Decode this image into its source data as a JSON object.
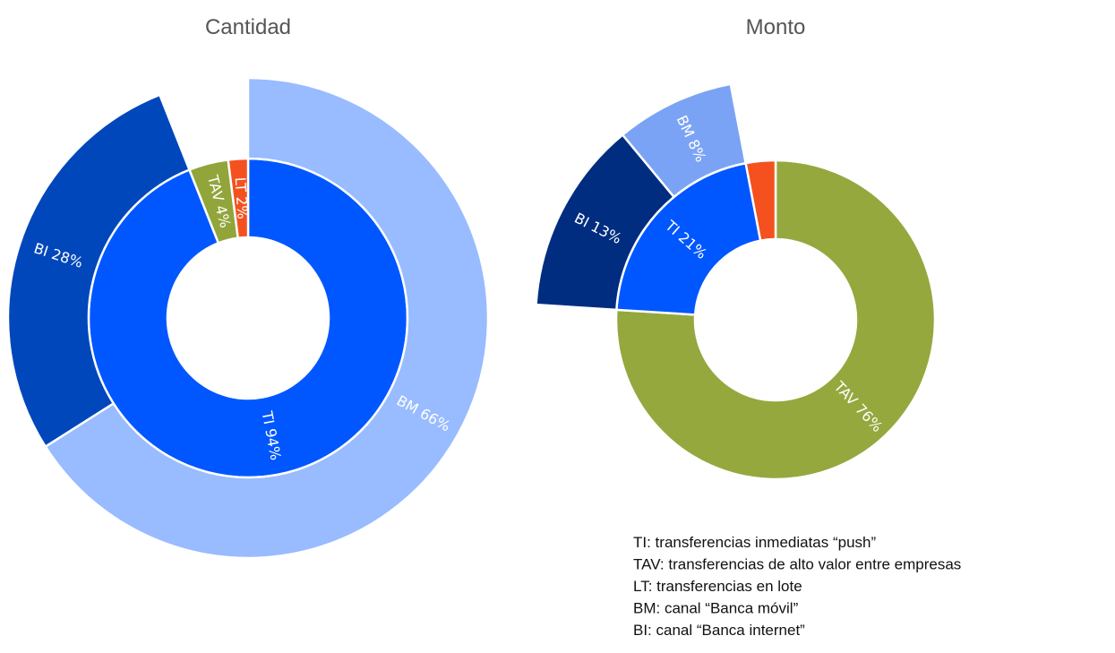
{
  "chart_data": [
    {
      "type": "sunburst",
      "title": "Cantidad",
      "segments": [
        {
          "label": "TI 94%",
          "value": 94,
          "color": "#0057ff",
          "children": [
            {
              "label": "BM 66%",
              "value": 66,
              "color": "#99bbff"
            },
            {
              "label": "BI 28%",
              "value": 28,
              "color": "#0047bb"
            }
          ]
        },
        {
          "label": "TAV 4%",
          "value": 4,
          "color": "#91a53b",
          "children": []
        },
        {
          "label": "LT 2%",
          "value": 2,
          "color": "#f4511e",
          "children": []
        }
      ]
    },
    {
      "type": "sunburst",
      "title": "Monto",
      "segments": [
        {
          "label": "TAV 76%",
          "value": 76,
          "color": "#94a83e",
          "children": []
        },
        {
          "label": "TI 21%",
          "value": 21,
          "color": "#0057ff",
          "children": [
            {
              "label": "BI 13%",
              "value": 13,
              "color": "#002d80"
            },
            {
              "label": "BM 8%",
              "value": 8,
              "color": "#7ba3f5"
            }
          ]
        },
        {
          "value": 3,
          "color": "#f4511e",
          "children": []
        }
      ]
    }
  ],
  "legend": [
    "TI: transferencias inmediatas “push”",
    "TAV: transferencias de alto valor entre empresas",
    "LT: transferencias en lote",
    "BM: canal “Banca móvil”",
    "BI: canal “Banca internet”"
  ]
}
